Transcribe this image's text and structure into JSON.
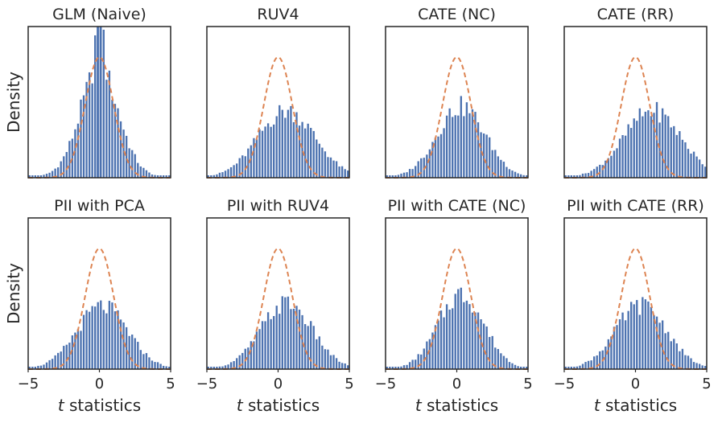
{
  "chart_data": {
    "type": "histogram-grid",
    "rows": 2,
    "cols": 4,
    "xlim": [
      -5,
      5
    ],
    "xticks": [
      -5,
      0,
      5
    ],
    "xlabel_italic": "t",
    "xlabel_rest": " statistics",
    "ylabel": "Density",
    "bins": 50,
    "reference_curve": "standard normal density (dashed)",
    "colors": {
      "bars": "#4c72b0",
      "curve": "#dd8452",
      "frame": "#262626"
    },
    "panels": [
      {
        "title": "GLM (Naive)",
        "mean": 0.0,
        "sd": 1.35,
        "peak_rel": 0.86,
        "spike": true,
        "tail": 0.09
      },
      {
        "title": "RUV4",
        "mean": 0.6,
        "sd": 2.0,
        "peak_rel": 0.55,
        "spike": false,
        "tail": 0.02
      },
      {
        "title": "CATE (NC)",
        "mean": 0.3,
        "sd": 1.7,
        "peak_rel": 0.58,
        "spike": false,
        "tail": 0.03
      },
      {
        "title": "CATE (RR)",
        "mean": 1.2,
        "sd": 2.0,
        "peak_rel": 0.55,
        "spike": false,
        "tail": 0.02
      },
      {
        "title": "PII with PCA",
        "mean": 0.2,
        "sd": 1.8,
        "peak_rel": 0.51,
        "spike": false,
        "tail": 0.03
      },
      {
        "title": "PII with RUV4",
        "mean": 0.6,
        "sd": 1.8,
        "peak_rel": 0.54,
        "spike": false,
        "tail": 0.02
      },
      {
        "title": "PII with CATE (NC)",
        "mean": 0.3,
        "sd": 1.6,
        "peak_rel": 0.61,
        "spike": false,
        "tail": 0.03
      },
      {
        "title": "PII with CATE (RR)",
        "mean": 0.4,
        "sd": 1.8,
        "peak_rel": 0.52,
        "spike": false,
        "tail": 0.03
      }
    ]
  }
}
